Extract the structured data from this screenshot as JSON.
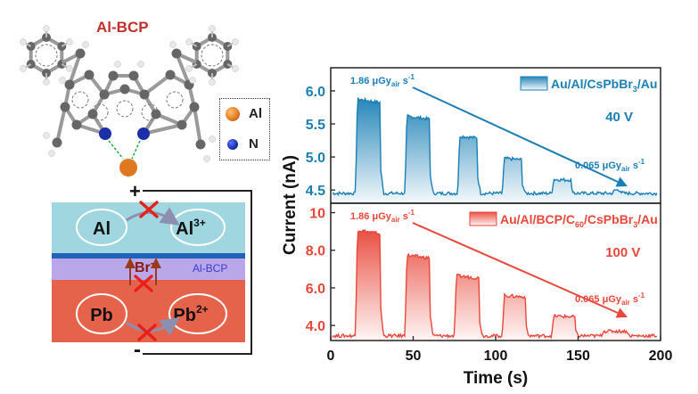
{
  "molecule": {
    "title": "Al-BCP",
    "legend": [
      {
        "symbol": "Al",
        "color": "#e07820"
      },
      {
        "symbol": "N",
        "color": "#1a2fa8"
      }
    ]
  },
  "device": {
    "plus": "+",
    "minus": "-",
    "top_layer": {
      "left": "Al",
      "right_base": "Al",
      "right_sup": "3+",
      "color": "#9fd6e0"
    },
    "interlayer": {
      "label": "Al-BCP",
      "color": "#b9a7ea"
    },
    "bottom_layer": {
      "left": "Pb",
      "right_base": "Pb",
      "right_sup": "2+",
      "color": "#e5634a"
    },
    "ion": {
      "base": "Br",
      "sup": "-"
    }
  },
  "chart_data": {
    "type": "line",
    "xlabel": "Time (s)",
    "ylabel": "Current (nA)",
    "xlim": [
      0,
      200
    ],
    "xticks": [
      0,
      50,
      100,
      150,
      200
    ],
    "panels": [
      {
        "name": "Au/Al/CsPbBr3/Au",
        "legend_parts": [
          "Au/Al/CsPbBr",
          "3",
          "/Au"
        ],
        "voltage": "40 V",
        "color": "#1a7fb5",
        "ylim": [
          4.3,
          6.35
        ],
        "yticks": [
          "6.0",
          "5.5",
          "5.0",
          "4.5"
        ],
        "ytick_values": [
          6.0,
          5.5,
          5.0,
          4.5
        ],
        "dose_start": "1.86",
        "dose_end": "0.065",
        "dose_unit": "μGy",
        "dose_sub": "air",
        "dose_tail": " s",
        "dose_sup": "-1",
        "baseline": 4.45,
        "pulses": [
          {
            "start": 15,
            "end": 30,
            "peak": 5.88
          },
          {
            "start": 45,
            "end": 60,
            "peak": 5.62
          },
          {
            "start": 77,
            "end": 89,
            "peak": 5.32
          },
          {
            "start": 104,
            "end": 116,
            "peak": 4.98
          },
          {
            "start": 134,
            "end": 146,
            "peak": 4.66
          },
          {
            "start": 171,
            "end": 176,
            "peak": 4.5
          }
        ]
      },
      {
        "name": "Au/Al/BCP/C60/CsPbBr3/Au",
        "legend_parts": [
          "Au/Al/BCP/C",
          "60",
          "/CsPbBr",
          "3",
          "/Au"
        ],
        "voltage": "100 V",
        "color": "#e8473a",
        "ylim": [
          3.2,
          10.5
        ],
        "yticks": [
          "10",
          "8.0",
          "6.0",
          "4.0"
        ],
        "ytick_values": [
          10,
          8,
          6,
          4
        ],
        "dose_start": "1.86",
        "dose_end": "0.065",
        "dose_unit": "μGy",
        "dose_sub": "air",
        "dose_tail": " s",
        "dose_sup": "-1",
        "baseline": 3.45,
        "pulses": [
          {
            "start": 15,
            "end": 30,
            "peak": 9.1
          },
          {
            "start": 45,
            "end": 60,
            "peak": 7.75
          },
          {
            "start": 75,
            "end": 90,
            "peak": 6.65
          },
          {
            "start": 104,
            "end": 118,
            "peak": 5.6
          },
          {
            "start": 134,
            "end": 148,
            "peak": 4.5
          },
          {
            "start": 164,
            "end": 180,
            "peak": 3.7
          }
        ]
      }
    ]
  }
}
